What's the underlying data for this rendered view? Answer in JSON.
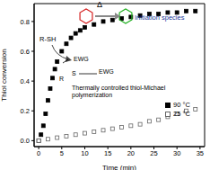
{
  "chart_data": {
    "type": "scatter",
    "x_label": "Time (min)",
    "y_label": "Thiol conversion",
    "xlim": [
      -1,
      36
    ],
    "xticks": [
      0,
      5,
      10,
      15,
      20,
      25,
      30,
      35
    ],
    "ylim": [
      -0.04,
      0.92
    ],
    "yticks": [
      {
        "value": 0,
        "label": "0.0"
      },
      {
        "value": 0.2,
        "label": "0.2"
      },
      {
        "value": 0.4,
        "label": "0.4"
      },
      {
        "value": 0.6,
        "label": "0.6"
      },
      {
        "value": 0.8,
        "label": "0.8"
      }
    ],
    "legend": "lower right",
    "series": [
      {
        "name": "90 °C",
        "color": "#000000",
        "marker": "square",
        "x": [
          0,
          0.5,
          1,
          1.5,
          2,
          2.5,
          3,
          3.5,
          4,
          5,
          6,
          7,
          8,
          9,
          10,
          12,
          14,
          16,
          18,
          20,
          22,
          24,
          26,
          28,
          30,
          32,
          34
        ],
        "values": [
          0,
          0.04,
          0.1,
          0.18,
          0.27,
          0.35,
          0.42,
          0.48,
          0.53,
          0.6,
          0.65,
          0.69,
          0.72,
          0.74,
          0.76,
          0.78,
          0.8,
          0.81,
          0.82,
          0.83,
          0.84,
          0.85,
          0.85,
          0.86,
          0.86,
          0.87,
          0.87
        ]
      },
      {
        "name": "25 °C",
        "color": "#666666",
        "marker": "open_square",
        "x": [
          0,
          2,
          4,
          6,
          8,
          10,
          12,
          14,
          16,
          18,
          20,
          22,
          24,
          26,
          28,
          30,
          32,
          34
        ],
        "values": [
          0,
          0.01,
          0.02,
          0.03,
          0.04,
          0.05,
          0.06,
          0.07,
          0.08,
          0.09,
          0.1,
          0.11,
          0.13,
          0.14,
          0.16,
          0.18,
          0.2,
          0.21
        ]
      }
    ],
    "annotations": [
      "Δ",
      "Initiation species",
      "R-SH",
      "EWG",
      "R",
      "S",
      "EWG",
      "Thermally controlled thiol-Michael polymerization"
    ]
  }
}
